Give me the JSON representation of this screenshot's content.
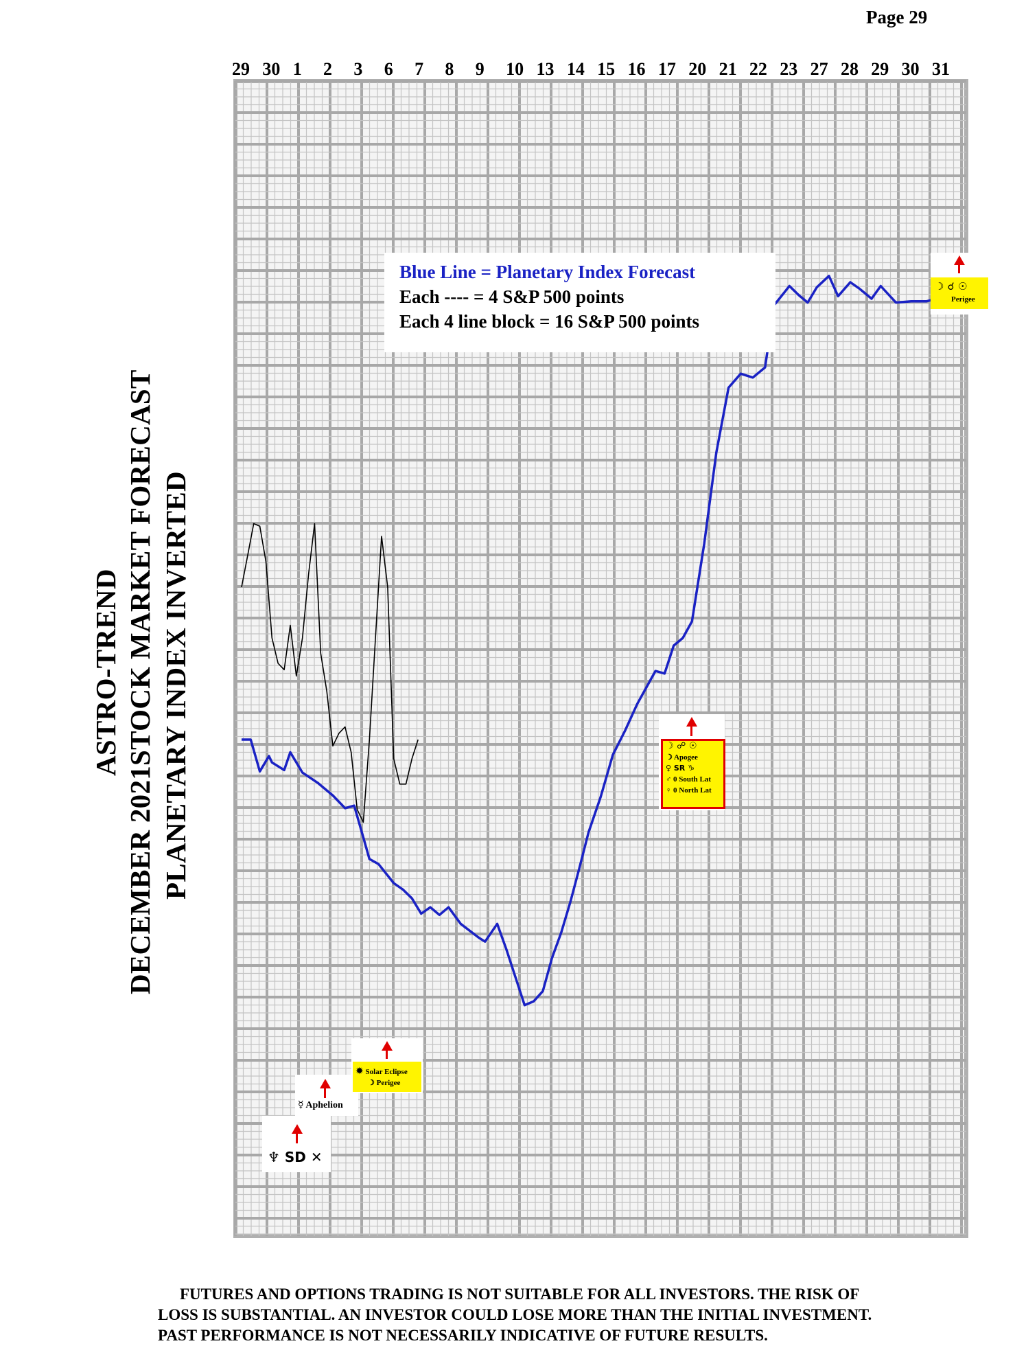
{
  "page": {
    "number_label": "Page  29"
  },
  "title": {
    "line1": "ASTRO-TREND",
    "line2": "DECEMBER 2021STOCK MARKET FORECAST",
    "line3": "PLANETARY INDEX INVERTED"
  },
  "legend": {
    "line1": "Blue Line = Planetary Index Forecast",
    "line2": "Each ---- =    4 S&P 500 points",
    "line3": "Each 4 line block =  16  S&P 500 points"
  },
  "annotations": {
    "neptune_sd": {
      "glyphs": "♆  SD  ✕"
    },
    "mercury_aphelion": {
      "glyph": "☿",
      "text": "Aphelion"
    },
    "solar_eclipse": {
      "line1": "Solar Eclipse",
      "line2": "☽ Perigee"
    },
    "apogee_box": {
      "line1": "☽ ☍ ☉",
      "line2": "☽ Apogee",
      "line3": "♀ SR ♑",
      "line4": "♂ 0 South Lat",
      "line5": "♀ 0 North Lat"
    },
    "perigee_box": {
      "line1": "☽ ☌ ☉",
      "line2": "Perigee"
    }
  },
  "disclaimer": {
    "line1": "FUTURES AND OPTIONS TRADING IS NOT SUITABLE FOR ALL INVESTORS.  THE RISK OF",
    "line2": "LOSS IS SUBSTANTIAL.  AN INVESTOR COULD LOSE MORE THAN THE INITIAL INVESTMENT.",
    "line3": "PAST PERFORMANCE IS NOT NECESSARILY INDICATIVE OF FUTURE RESULTS."
  },
  "colors": {
    "forecast_line": "#1a22c4",
    "price_line": "#000000",
    "grid": "#9a9a9a",
    "arrow": "#e00000",
    "highlight": "#fff400"
  },
  "chart_data": {
    "type": "line",
    "x_categories": [
      "29",
      "30",
      "1",
      "2",
      "3",
      "6",
      "7",
      "8",
      "9",
      "10",
      "13",
      "14",
      "15",
      "16",
      "17",
      "20",
      "21",
      "22",
      "23",
      "27",
      "28",
      "29",
      "30",
      "31"
    ],
    "y_scale_note": "inverted",
    "grid": true,
    "series": [
      {
        "name": "Blue Line = Planetary Index Forecast",
        "role": "forecast",
        "x": [
          0,
          0.3,
          0.6,
          0.9,
          1.0,
          1.4,
          1.6,
          2.0,
          2.5,
          3.0,
          3.4,
          3.7,
          4.0,
          4.2,
          4.5,
          5.0,
          5.3,
          5.6,
          5.9,
          6.2,
          6.5,
          6.8,
          7.2,
          7.8,
          8.0,
          8.4,
          8.7,
          9.0,
          9.3,
          9.6,
          9.9,
          10.2,
          10.5,
          10.8,
          11.1,
          11.4,
          11.8,
          12.2,
          12.6,
          13.0,
          13.3,
          13.6,
          13.9,
          14.2,
          14.5,
          14.8,
          15.2,
          15.6,
          16.0,
          16.4,
          16.8,
          17.2,
          17.5,
          18.0,
          18.3,
          18.6,
          18.9,
          19.3,
          19.6,
          20.0,
          20.3,
          20.7,
          21.0,
          21.5,
          22.0,
          22.5,
          23.0
        ],
        "y": [
          300,
          300,
          275,
          287,
          282,
          276,
          290,
          274,
          266,
          256,
          246,
          248,
          223,
          206,
          202,
          187,
          182,
          175,
          163,
          168,
          162,
          168,
          155,
          144,
          141,
          155,
          135,
          113,
          91,
          94,
          102,
          128,
          148,
          172,
          199,
          227,
          255,
          288,
          307,
          328,
          341,
          354,
          352,
          374,
          380,
          393,
          454,
          526,
          577,
          588,
          585,
          593,
          642,
          657,
          650,
          644,
          656,
          665,
          649,
          660,
          655,
          647,
          657,
          644,
          645,
          645,
          648
        ]
      },
      {
        "name": "",
        "role": "actual",
        "x": [
          0,
          0.2,
          0.4,
          0.6,
          0.8,
          1.0,
          1.2,
          1.4,
          1.6,
          1.8,
          2.0,
          2.2,
          2.4,
          2.6,
          2.8,
          3.0,
          3.2,
          3.4,
          3.6,
          3.8,
          4.0,
          4.2,
          4.4,
          4.6,
          4.8,
          5.0,
          5.2,
          5.4,
          5.6,
          5.8
        ],
        "y": [
          420,
          445,
          470,
          468,
          440,
          380,
          360,
          355,
          390,
          350,
          380,
          430,
          470,
          368,
          338,
          295,
          305,
          310,
          290,
          245,
          235,
          300,
          380,
          460,
          420,
          285,
          265,
          265,
          285,
          300
        ]
      }
    ]
  }
}
